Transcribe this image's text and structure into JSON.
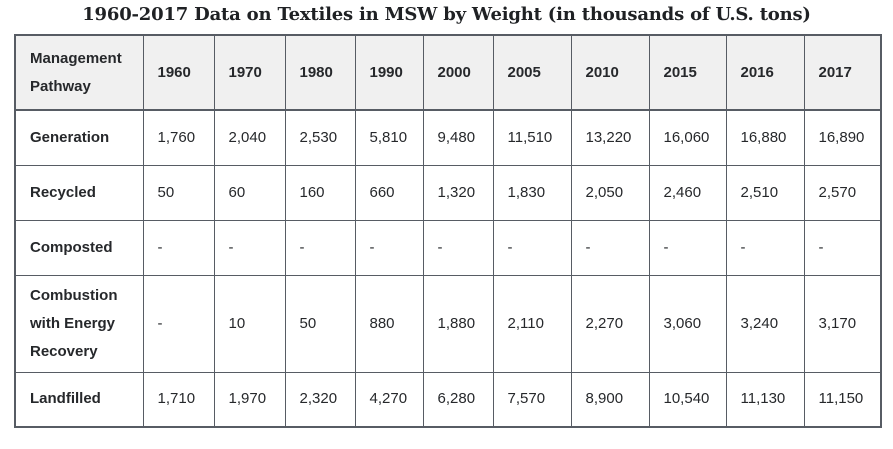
{
  "title": "1960-2017 Data on Textiles in MSW by Weight (in thousands of U.S. tons)",
  "table": {
    "header_column": "Management Pathway",
    "year_columns": [
      "1960",
      "1970",
      "1980",
      "1990",
      "2000",
      "2005",
      "2010",
      "2015",
      "2016",
      "2017"
    ],
    "rows": [
      {
        "label": "Generation",
        "values": [
          "1,760",
          "2,040",
          "2,530",
          "5,810",
          "9,480",
          "11,510",
          "13,220",
          "16,060",
          "16,880",
          "16,890"
        ]
      },
      {
        "label": "Recycled",
        "values": [
          "50",
          "60",
          "160",
          "660",
          "1,320",
          "1,830",
          "2,050",
          "2,460",
          "2,510",
          "2,570"
        ]
      },
      {
        "label": "Composted",
        "values": [
          "-",
          "-",
          "-",
          "-",
          "-",
          "-",
          "-",
          "-",
          "-",
          "-"
        ]
      },
      {
        "label": "Combustion with Energy Recovery",
        "values": [
          "-",
          "10",
          "50",
          "880",
          "1,880",
          "2,110",
          "2,270",
          "3,060",
          "3,240",
          "3,170"
        ]
      },
      {
        "label": "Landfilled",
        "values": [
          "1,710",
          "1,970",
          "2,320",
          "4,270",
          "6,280",
          "7,570",
          "8,900",
          "10,540",
          "11,130",
          "11,150"
        ]
      }
    ]
  },
  "chart_data": {
    "type": "table",
    "title": "1960-2017 Data on Textiles in MSW by Weight (in thousands of U.S. tons)",
    "units": "thousands of U.S. tons",
    "categories": [
      "1960",
      "1970",
      "1980",
      "1990",
      "2000",
      "2005",
      "2010",
      "2015",
      "2016",
      "2017"
    ],
    "series": [
      {
        "name": "Generation",
        "values": [
          1760,
          2040,
          2530,
          5810,
          9480,
          11510,
          13220,
          16060,
          16880,
          16890
        ]
      },
      {
        "name": "Recycled",
        "values": [
          50,
          60,
          160,
          660,
          1320,
          1830,
          2050,
          2460,
          2510,
          2570
        ]
      },
      {
        "name": "Composted",
        "values": [
          null,
          null,
          null,
          null,
          null,
          null,
          null,
          null,
          null,
          null
        ]
      },
      {
        "name": "Combustion with Energy Recovery",
        "values": [
          null,
          10,
          50,
          880,
          1880,
          2110,
          2270,
          3060,
          3240,
          3170
        ]
      },
      {
        "name": "Landfilled",
        "values": [
          1710,
          1970,
          2320,
          4270,
          6280,
          7570,
          8900,
          10540,
          11130,
          11150
        ]
      }
    ],
    "missing_value_marker": "-"
  },
  "colors": {
    "page_background": "#ffffff",
    "header_background": "#f0f0f0",
    "body_background": "#ffffff",
    "border": "#575c64",
    "text": "#26282b"
  }
}
